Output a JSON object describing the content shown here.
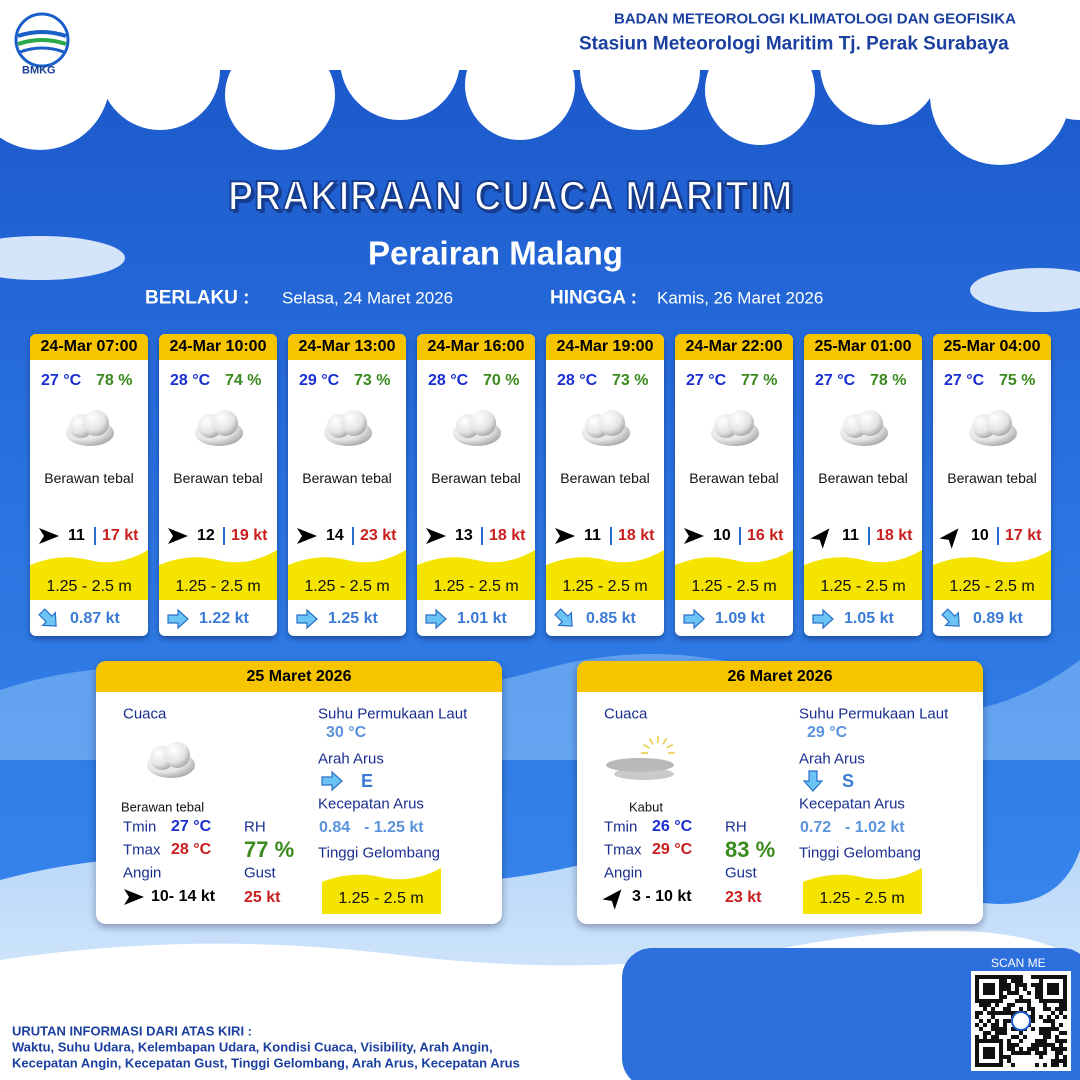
{
  "header": {
    "logo": "BMKG",
    "agency": "BADAN METEOROLOGI KLIMATOLOGI DAN GEOFISIKA",
    "station": "Stasiun Meteorologi Maritim Tj. Perak Surabaya"
  },
  "title": "PRAKIRAAN CUACA MARITIM",
  "subtitle": "Perairan Malang",
  "validity": {
    "from_label": "BERLAKU :",
    "from": "Selasa, 24 Maret 2026",
    "to_label": "HINGGA :",
    "to": "Kamis, 26 Maret 2026"
  },
  "forecasts": [
    {
      "time": "24-Mar 07:00",
      "temp": "27 °C",
      "rh": "78 %",
      "weather": "Berawan tebal",
      "wind": "11",
      "gust": "17 kt",
      "wave": "1.25 - 2.5 m",
      "current": "0.87 kt"
    },
    {
      "time": "24-Mar 10:00",
      "temp": "28 °C",
      "rh": "74 %",
      "weather": "Berawan tebal",
      "wind": "12",
      "gust": "19 kt",
      "wave": "1.25 - 2.5 m",
      "current": "1.22 kt"
    },
    {
      "time": "24-Mar 13:00",
      "temp": "29 °C",
      "rh": "73 %",
      "weather": "Berawan tebal",
      "wind": "14",
      "gust": "23 kt",
      "wave": "1.25 - 2.5 m",
      "current": "1.25 kt"
    },
    {
      "time": "24-Mar 16:00",
      "temp": "28 °C",
      "rh": "70 %",
      "weather": "Berawan tebal",
      "wind": "13",
      "gust": "18 kt",
      "wave": "1.25 - 2.5 m",
      "current": "1.01 kt"
    },
    {
      "time": "24-Mar 19:00",
      "temp": "28 °C",
      "rh": "73 %",
      "weather": "Berawan tebal",
      "wind": "11",
      "gust": "18 kt",
      "wave": "1.25 - 2.5 m",
      "current": "0.85 kt"
    },
    {
      "time": "24-Mar 22:00",
      "temp": "27 °C",
      "rh": "77 %",
      "weather": "Berawan tebal",
      "wind": "10",
      "gust": "16 kt",
      "wave": "1.25 - 2.5 m",
      "current": "1.09 kt"
    },
    {
      "time": "25-Mar 01:00",
      "temp": "27 °C",
      "rh": "78 %",
      "weather": "Berawan tebal",
      "wind": "11",
      "gust": "18 kt",
      "wave": "1.25 - 2.5 m",
      "current": "1.05 kt"
    },
    {
      "time": "25-Mar 04:00",
      "temp": "27 °C",
      "rh": "75 %",
      "weather": "Berawan tebal",
      "wind": "10",
      "gust": "17 kt",
      "wave": "1.25 - 2.5 m",
      "current": "0.89 kt"
    }
  ],
  "daily_labels": {
    "weather": "Cuaca",
    "tmin": "Tmin",
    "tmax": "Tmax",
    "rh": "RH",
    "wind": "Angin",
    "gust": "Gust",
    "sst": "Suhu Permukaan Laut",
    "current_dir": "Arah Arus",
    "current_speed": "Kecepatan Arus",
    "wave": "Tinggi Gelombang"
  },
  "daily": [
    {
      "date": "25 Maret 2026",
      "weather": "Berawan tebal",
      "tmin": "27 °C",
      "tmax": "28 °C",
      "rh": "77 %",
      "wind": "10- 14 kt",
      "gust": "25 kt",
      "sst": "30 °C",
      "current_dir": "E",
      "current_min": "0.84",
      "current_max": "- 1.25 kt",
      "wave": "1.25 - 2.5 m"
    },
    {
      "date": "26 Maret 2026",
      "weather": "Kabut",
      "tmin": "26 °C",
      "tmax": "29 °C",
      "rh": "83 %",
      "wind": "3 - 10 kt",
      "gust": "23 kt",
      "sst": "29 °C",
      "current_dir": "S",
      "current_min": "0.72",
      "current_max": "- 1.02 kt",
      "wave": "1.25 - 2.5 m"
    }
  ],
  "footer": {
    "scan": "SCAN ME",
    "legend_title": "URUTAN INFORMASI DARI ATAS KIRI :",
    "legend_lines": [
      "Waktu, Suhu Udara, Kelembapan Udara, Kondisi Cuaca, Visibility, Arah Angin,",
      "Kecepatan Angin, Kecepatan Gust, Tinggi Gelombang, Arah Arus, Kecepatan Arus"
    ]
  }
}
